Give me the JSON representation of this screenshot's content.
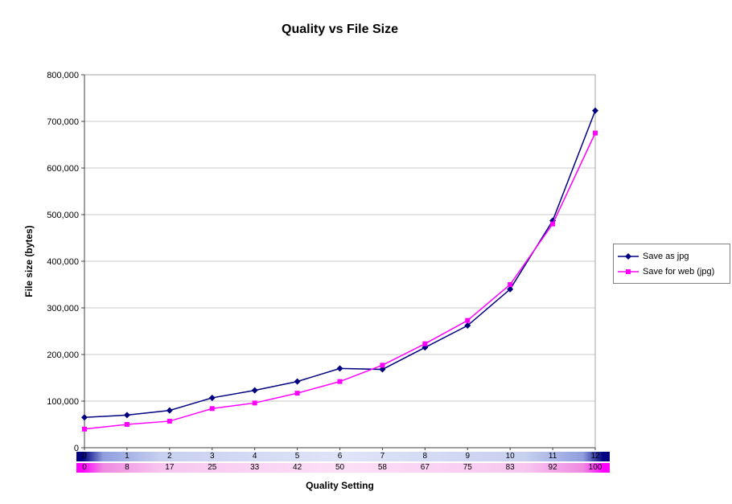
{
  "title": "Quality vs File Size",
  "chart_data": {
    "type": "line",
    "title": "Quality vs File Size",
    "xlabel": "Quality Setting",
    "ylabel": "File size (bytes)",
    "ylim": [
      0,
      800000
    ],
    "y_tick_step": 100000,
    "y_tick_labels": [
      "0",
      "100,000",
      "200,000",
      "300,000",
      "400,000",
      "500,000",
      "600,000",
      "700,000",
      "800,000"
    ],
    "grid": true,
    "legend_position": "right",
    "x_axis_rows": {
      "row1_color": "#000080",
      "row1_labels": [
        "0",
        "1",
        "2",
        "3",
        "4",
        "5",
        "6",
        "7",
        "8",
        "9",
        "10",
        "11",
        "12"
      ],
      "row2_color": "#FF00FF",
      "row2_labels": [
        "0",
        "8",
        "17",
        "25",
        "33",
        "42",
        "50",
        "58",
        "67",
        "75",
        "83",
        "92",
        "100"
      ]
    },
    "series": [
      {
        "name": "Save as jpg",
        "color": "#000080",
        "marker": "diamond",
        "values": [
          65000,
          70000,
          80000,
          107000,
          123000,
          142000,
          170000,
          168000,
          215000,
          262000,
          340000,
          487000,
          723000
        ]
      },
      {
        "name": "Save for web (jpg)",
        "color": "#FF00FF",
        "marker": "square",
        "values": [
          40000,
          50000,
          57000,
          84000,
          96000,
          117000,
          142000,
          177000,
          223000,
          273000,
          350000,
          480000,
          675000
        ]
      }
    ],
    "colors": {
      "gridline": "#c8c8c8",
      "plot_border": "#a6a6a6",
      "axis": "#404040"
    }
  }
}
